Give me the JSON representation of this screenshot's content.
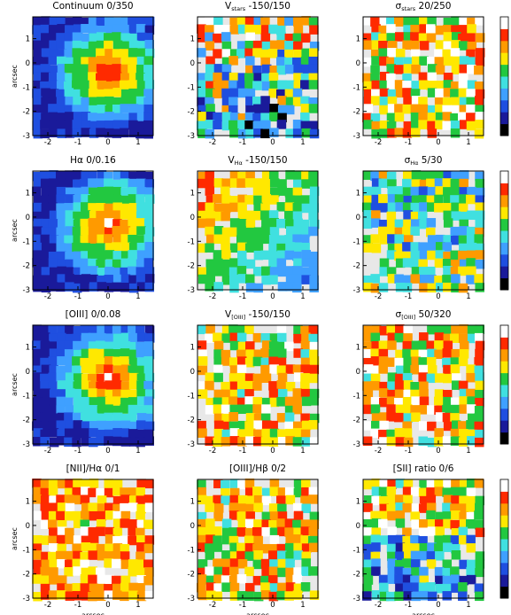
{
  "figure": {
    "xlabel": "arcsec",
    "ylabel": "arcsec",
    "x_ticks": [
      "-2",
      "-1",
      "0",
      "1"
    ],
    "y_ticks": [
      "1",
      "0",
      "-1",
      "-2",
      "-3"
    ],
    "colormap": [
      "#000000",
      "#1a1a9a",
      "#1f4fe0",
      "#3fa0ff",
      "#40e0e0",
      "#22c840",
      "#ffe800",
      "#ff9a00",
      "#ff2a00",
      "#ffffff"
    ]
  },
  "chart_data": [
    {
      "type": "heatmap",
      "id": "continuum",
      "title": "Continuum    0/350",
      "xlim": [
        -2.5,
        1.5
      ],
      "ylim": [
        -3,
        1.9
      ],
      "pattern": "radial-peak"
    },
    {
      "type": "heatmap",
      "id": "v_stars",
      "title": "V",
      "sub": "stars",
      "range": "   -150/150",
      "xlim": [
        -2.5,
        1.5
      ],
      "ylim": [
        -3,
        1.9
      ],
      "pattern": "velocity-noisy"
    },
    {
      "type": "heatmap",
      "id": "sigma_stars",
      "title": "σ",
      "sub": "stars",
      "range": "   20/250",
      "xlim": [
        -2.5,
        1.5
      ],
      "ylim": [
        -3,
        1.9
      ],
      "pattern": "noisy-high"
    },
    {
      "type": "heatmap",
      "id": "halpha",
      "title": "Hα    0/0.16",
      "xlim": [
        -2.5,
        1.5
      ],
      "ylim": [
        -3,
        1.9
      ],
      "pattern": "radial-peak"
    },
    {
      "type": "heatmap",
      "id": "v_halpha",
      "title": "V",
      "sub": "Hα",
      "range": "   -150/150",
      "xlim": [
        -2.5,
        1.5
      ],
      "ylim": [
        -3,
        1.9
      ],
      "pattern": "velocity-gradient"
    },
    {
      "type": "heatmap",
      "id": "sigma_halpha",
      "title": "σ",
      "sub": "Hα",
      "range": "   5/30",
      "xlim": [
        -2.5,
        1.5
      ],
      "ylim": [
        -3,
        1.9
      ],
      "pattern": "noisy-mid"
    },
    {
      "type": "heatmap",
      "id": "oiii",
      "title": "[OIII]    0/0.08",
      "xlim": [
        -2.5,
        1.5
      ],
      "ylim": [
        -3,
        1.9
      ],
      "pattern": "radial-peak"
    },
    {
      "type": "heatmap",
      "id": "v_oiii",
      "title": "V",
      "sub": "[OIII]",
      "range": "   -150/150",
      "xlim": [
        -2.5,
        1.5
      ],
      "ylim": [
        -3,
        1.9
      ],
      "pattern": "noisy-high"
    },
    {
      "type": "heatmap",
      "id": "sigma_oiii",
      "title": "σ",
      "sub": "[OIII]",
      "range": "   50/320",
      "xlim": [
        -2.5,
        1.5
      ],
      "ylim": [
        -3,
        1.9
      ],
      "pattern": "noisy-high"
    },
    {
      "type": "heatmap",
      "id": "nii_ha",
      "title": "[NII]/Hα  0/1",
      "xlim": [
        -2.5,
        1.5
      ],
      "ylim": [
        -3,
        1.9
      ],
      "pattern": "noisy-warm"
    },
    {
      "type": "heatmap",
      "id": "oiii_hb",
      "title": "[OIII]/Hβ  0/2",
      "xlim": [
        -2.5,
        1.5
      ],
      "ylim": [
        -3,
        1.9
      ],
      "pattern": "noisy-high"
    },
    {
      "type": "heatmap",
      "id": "sii_ratio",
      "title": "[SII] ratio 0/6",
      "xlim": [
        -2.5,
        1.5
      ],
      "ylim": [
        -3,
        1.9
      ],
      "pattern": "noisy-mixed"
    }
  ]
}
